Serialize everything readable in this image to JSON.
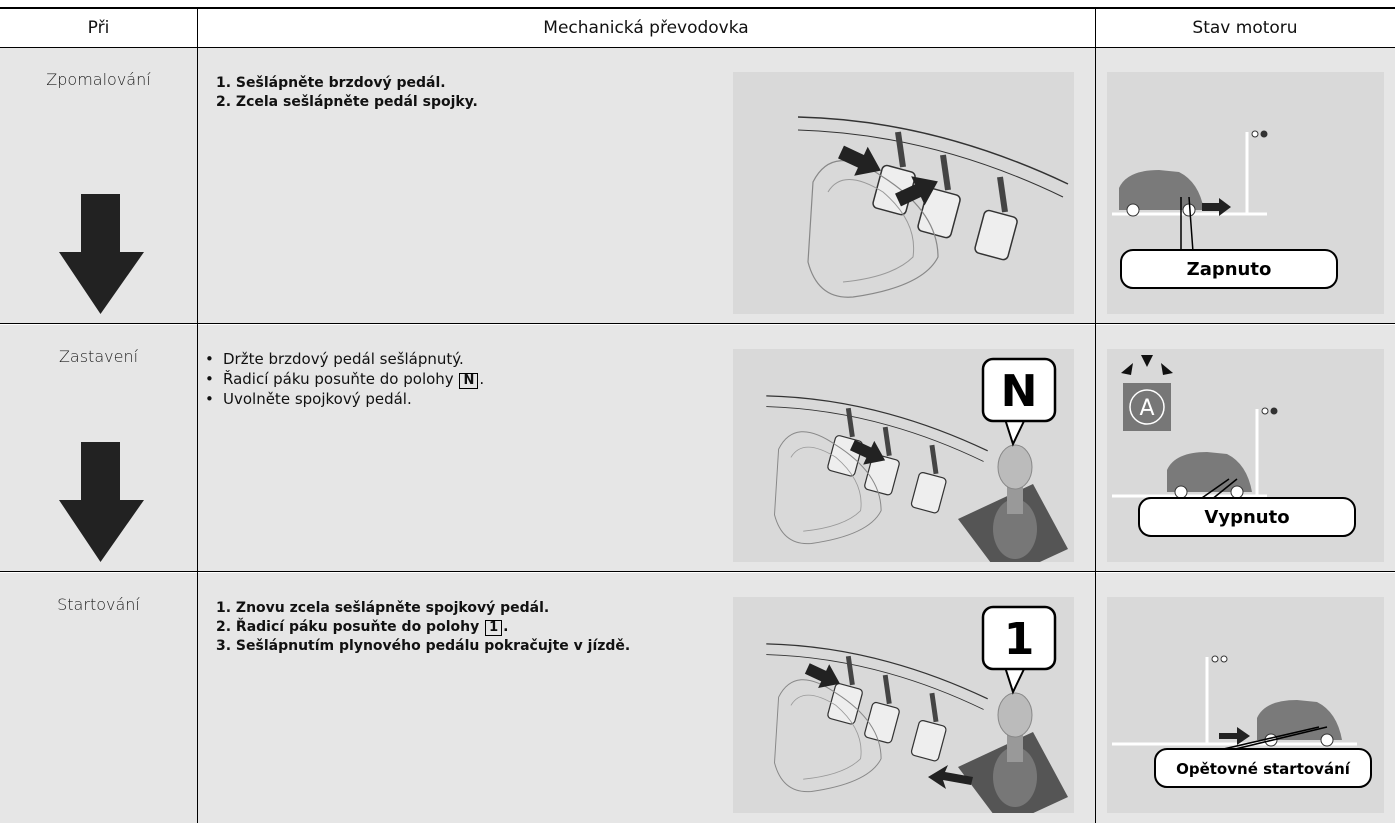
{
  "table": {
    "header": [
      "Při",
      "Mechanická převodovka",
      "Stav motoru"
    ],
    "rows": [
      {
        "phase": "Zpomalování",
        "style": "numbered",
        "steps": [
          {
            "text": "1. Sešlápněte brzdový pedál."
          },
          {
            "text": "2. Zcela sešlápněte pedál spojky."
          }
        ],
        "status": "Zapnuto"
      },
      {
        "phase": "Zastavení",
        "style": "bullet",
        "steps": [
          {
            "text": "Držte brzdový pedál sešlápnutý."
          },
          {
            "text": "Řadicí páku posuňte do polohy",
            "key": "N",
            "after": "."
          },
          {
            "text": "Uvolněte spojkový pedál."
          }
        ],
        "gear": "N",
        "indicator": "A",
        "status": "Vypnuto"
      },
      {
        "phase": "Startování",
        "style": "numbered",
        "steps": [
          {
            "text": "1. Znovu zcela sešlápněte spojkový pedál."
          },
          {
            "text": "2. Řadicí páku posuňte do polohy",
            "key": "1",
            "after": "."
          },
          {
            "text": "3. Sešlápnutím plynového pedálu pokračujte v jízdě."
          }
        ],
        "gear": "1",
        "status": "Opětovné startování"
      }
    ]
  }
}
